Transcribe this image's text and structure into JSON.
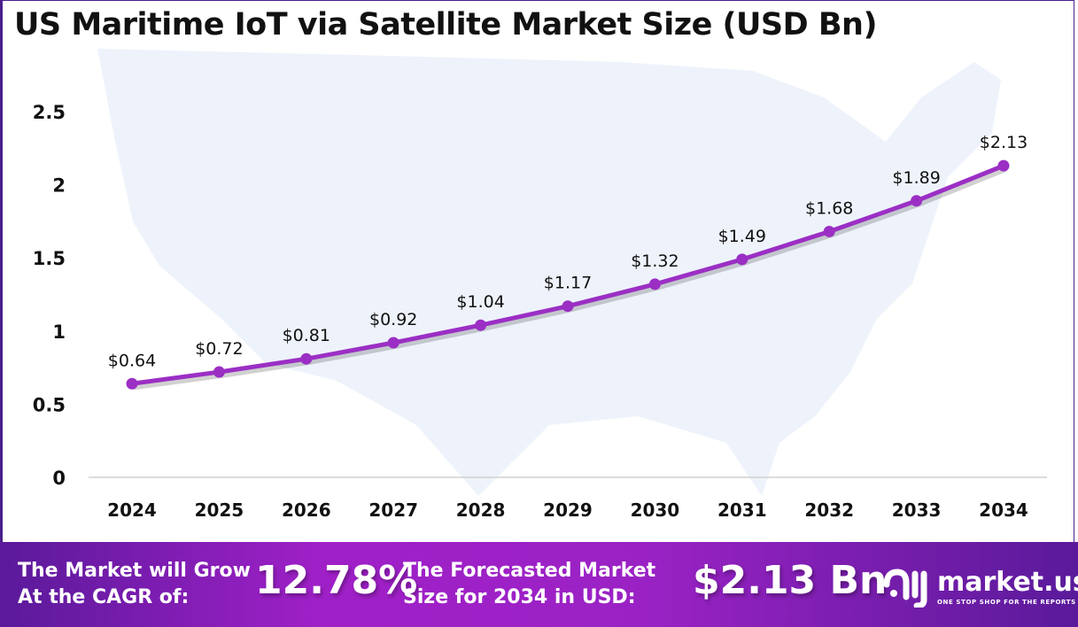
{
  "title": "US Maritime IoT via Satellite Market Size (USD Bn)",
  "chart_data": {
    "type": "line",
    "title": "US Maritime IoT via Satellite Market Size (USD Bn)",
    "categories": [
      "2024",
      "2025",
      "2026",
      "2027",
      "2028",
      "2029",
      "2030",
      "2031",
      "2032",
      "2033",
      "2034"
    ],
    "values": [
      0.64,
      0.72,
      0.81,
      0.92,
      1.04,
      1.17,
      1.32,
      1.49,
      1.68,
      1.89,
      2.13
    ],
    "data_labels": [
      "$0.64",
      "$0.72",
      "$0.81",
      "$0.92",
      "$1.04",
      "$1.17",
      "$1.32",
      "$1.49",
      "$1.68",
      "$1.89",
      "$2.13"
    ],
    "ylim": [
      0,
      2.5
    ],
    "yticks": [
      "0",
      "0.5",
      "1",
      "1.5",
      "2",
      "2.5"
    ],
    "grid": false,
    "line_color": "#9b2fc4",
    "xlabel": "",
    "ylabel": ""
  },
  "footer": {
    "cagr_text_1": "The Market will Grow",
    "cagr_text_2": "At the CAGR of:",
    "cagr_value": "12.78%",
    "forecast_text_1": "The Forecasted Market",
    "forecast_text_2": "Size for 2034 in USD:",
    "forecast_value": "$2.13 Bn",
    "logo_name": "market.us",
    "logo_tagline": "ONE STOP SHOP FOR THE REPORTS"
  }
}
